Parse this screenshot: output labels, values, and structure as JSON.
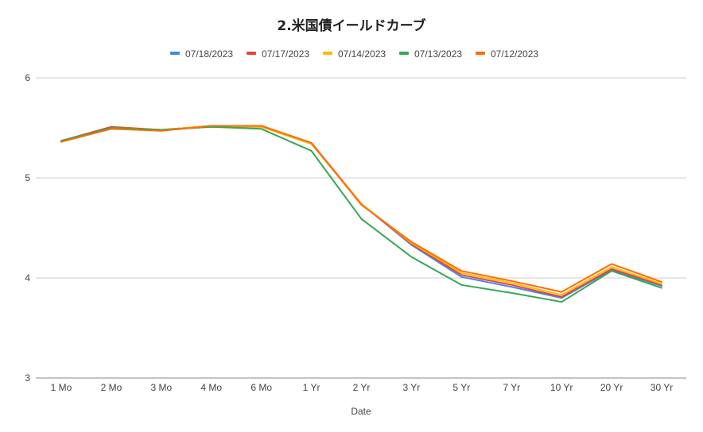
{
  "chart_data": {
    "type": "line",
    "title": "2.米国債イールドカーブ",
    "xlabel": "Date",
    "ylabel": "",
    "ylim": [
      3,
      6
    ],
    "yticks": [
      "3",
      "4",
      "5",
      "6"
    ],
    "grid": true,
    "legend_position": "top",
    "categories": [
      "1 Mo",
      "2 Mo",
      "3 Mo",
      "4 Mo",
      "6 Mo",
      "1 Yr",
      "2 Yr",
      "3 Yr",
      "5 Yr",
      "7 Yr",
      "10 Yr",
      "20 Yr",
      "30 Yr"
    ],
    "series": [
      {
        "name": "07/18/2023",
        "color": "#4285f4",
        "values": [
          5.37,
          5.5,
          5.48,
          5.51,
          5.51,
          5.34,
          4.74,
          4.33,
          4.01,
          3.91,
          3.8,
          4.08,
          3.92
        ]
      },
      {
        "name": "07/17/2023",
        "color": "#ea4335",
        "values": [
          5.37,
          5.51,
          5.48,
          5.52,
          5.52,
          5.35,
          4.74,
          4.34,
          4.03,
          3.93,
          3.81,
          4.09,
          3.93
        ]
      },
      {
        "name": "07/14/2023",
        "color": "#fbbc04",
        "values": [
          5.36,
          5.5,
          5.48,
          5.52,
          5.51,
          5.34,
          4.74,
          4.35,
          4.05,
          3.95,
          3.83,
          4.11,
          3.94
        ]
      },
      {
        "name": "07/13/2023",
        "color": "#34a853",
        "values": [
          5.37,
          5.5,
          5.48,
          5.51,
          5.49,
          5.27,
          4.59,
          4.21,
          3.93,
          3.85,
          3.76,
          4.07,
          3.9
        ]
      },
      {
        "name": "07/12/2023",
        "color": "#ff6d01",
        "values": [
          5.36,
          5.49,
          5.47,
          5.52,
          5.52,
          5.35,
          4.73,
          4.36,
          4.07,
          3.97,
          3.86,
          4.14,
          3.96
        ]
      }
    ]
  }
}
